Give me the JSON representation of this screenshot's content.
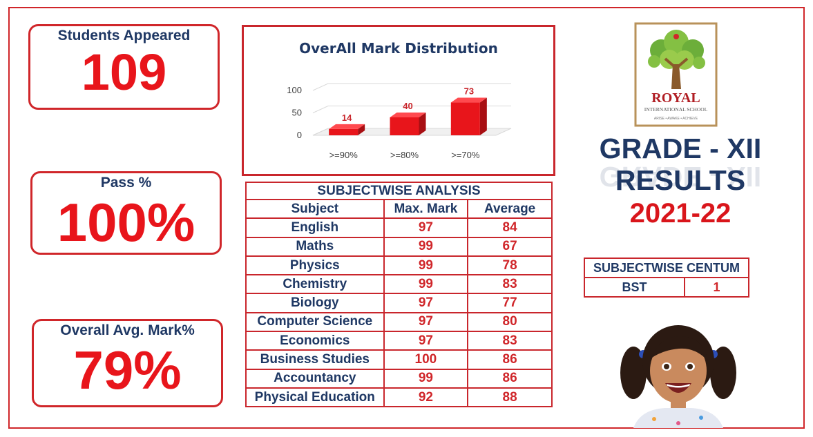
{
  "stats": {
    "students": {
      "label": "Students Appeared",
      "value": "109"
    },
    "pass": {
      "label": "Pass %",
      "value": "100%"
    },
    "avg": {
      "label": "Overall Avg. Mark%",
      "value": "79%"
    }
  },
  "chart_data": {
    "type": "bar",
    "title": "OverAll Mark Distribution",
    "categories": [
      ">=90%",
      ">=80%",
      ">=70%"
    ],
    "values": [
      14,
      40,
      73
    ],
    "yticks": [
      0,
      50,
      100
    ],
    "ylim": [
      0,
      100
    ],
    "bar_color": "#e8151b",
    "label_color": "#c9262c",
    "grid": true
  },
  "subjectwise": {
    "title": "SUBJECTWISE ANALYSIS",
    "headers": [
      "Subject",
      "Max. Mark",
      "Average"
    ],
    "rows": [
      {
        "subject": "English",
        "max": "97",
        "avg": "84"
      },
      {
        "subject": "Maths",
        "max": "99",
        "avg": "67"
      },
      {
        "subject": "Physics",
        "max": "99",
        "avg": "78"
      },
      {
        "subject": "Chemistry",
        "max": "99",
        "avg": "83"
      },
      {
        "subject": "Biology",
        "max": "97",
        "avg": "77"
      },
      {
        "subject": "Computer Science",
        "max": "97",
        "avg": "80"
      },
      {
        "subject": "Economics",
        "max": "97",
        "avg": "83"
      },
      {
        "subject": "Business Studies",
        "max": "100",
        "avg": "86"
      },
      {
        "subject": "Accountancy",
        "max": "99",
        "avg": "86"
      },
      {
        "subject": "Physical Education",
        "max": "92",
        "avg": "88"
      }
    ]
  },
  "centum": {
    "title": "SUBJECTWISE CENTUM",
    "rows": [
      {
        "subject": "BST",
        "count": "1"
      }
    ]
  },
  "logo": {
    "name": "ROYAL",
    "subtitle": "INTERNATIONAL SCHOOL",
    "tagline": "ARISE • AWAKE • ACHIEVE"
  },
  "heading": {
    "line1": "GRADE - XII",
    "line2": "RESULTS",
    "year": "2021-22"
  },
  "colors": {
    "accent_red": "#d0262a",
    "navy": "#1f3864"
  }
}
